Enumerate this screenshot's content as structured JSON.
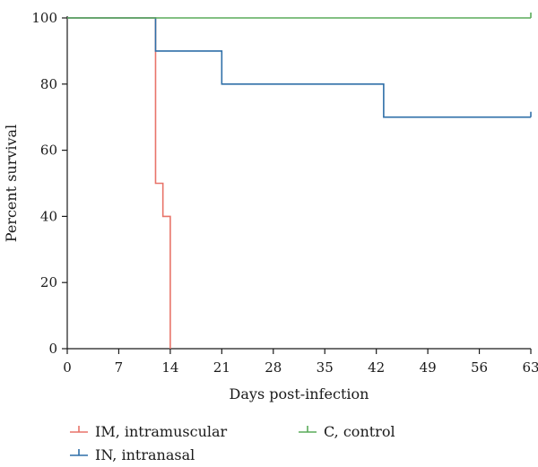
{
  "chart_data": {
    "type": "line",
    "step": true,
    "xlabel": "Days post-infection",
    "ylabel": "Percent survival",
    "xlim": [
      0,
      63
    ],
    "ylim": [
      0,
      100
    ],
    "xticks": [
      0,
      7,
      14,
      21,
      28,
      35,
      42,
      49,
      56,
      63
    ],
    "yticks": [
      0,
      20,
      40,
      60,
      80,
      100
    ],
    "grid": false,
    "legend": "bottom",
    "series": [
      {
        "name": "IM, intramuscular",
        "color": "#e8746a",
        "x": [
          0,
          12,
          13,
          14
        ],
        "y": [
          100,
          50,
          40,
          0
        ]
      },
      {
        "name": "IN, intranasal",
        "color": "#2f6fa8",
        "x": [
          0,
          12,
          21,
          43,
          63
        ],
        "y": [
          100,
          90,
          80,
          70,
          70
        ]
      },
      {
        "name": "C, control",
        "color": "#5aab5a",
        "x": [
          0,
          63
        ],
        "y": [
          100,
          100
        ]
      }
    ]
  }
}
